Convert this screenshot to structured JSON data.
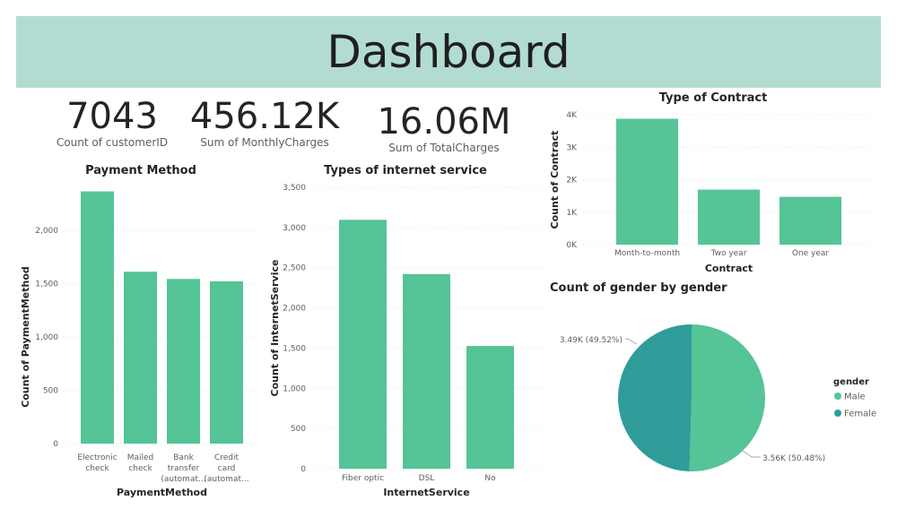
{
  "header": {
    "title": "Dashboard"
  },
  "kpis": [
    {
      "value": "7043",
      "label": "Count of customerID"
    },
    {
      "value": "456.12K",
      "label": "Sum of MonthlyCharges"
    },
    {
      "value": "16.06M",
      "label": "Sum of TotalCharges"
    }
  ],
  "colors": {
    "banner": "#b2dcd2",
    "bar": "#55c496",
    "male": "#55c496",
    "female": "#2f9c9a"
  },
  "chart_data": [
    {
      "type": "bar",
      "title": "Payment Method",
      "xlabel": "PaymentMethod",
      "ylabel": "Count of PaymentMethod",
      "categories": [
        [
          "Electronic",
          "check"
        ],
        [
          "Mailed",
          "check"
        ],
        [
          "Bank",
          "transfer",
          "(automat..."
        ],
        [
          "Credit",
          "card",
          "(automat..."
        ]
      ],
      "values": [
        2365,
        1612,
        1544,
        1522
      ],
      "yticks": [
        "0",
        "500",
        "1,000",
        "1,500",
        "2,000"
      ],
      "ylim": [
        0,
        2400
      ],
      "grid": true
    },
    {
      "type": "bar",
      "title": "Types of internet service",
      "xlabel": "InternetService",
      "ylabel": "Count of InternetService",
      "categories": [
        [
          "Fiber optic"
        ],
        [
          "DSL"
        ],
        [
          "No"
        ]
      ],
      "values": [
        3096,
        2421,
        1526
      ],
      "yticks": [
        "0",
        "500",
        "1,000",
        "1,500",
        "2,000",
        "2,500",
        "3,000",
        "3,500"
      ],
      "ylim": [
        0,
        3500
      ],
      "grid": true
    },
    {
      "type": "bar",
      "title": "Type of Contract",
      "xlabel": "Contract",
      "ylabel": "Count of Contract",
      "categories": [
        [
          "Month-to-month"
        ],
        [
          "Two year"
        ],
        [
          "One year"
        ]
      ],
      "values": [
        3875,
        1695,
        1473
      ],
      "yticks": [
        "0K",
        "1K",
        "2K",
        "3K",
        "4K"
      ],
      "ylim": [
        0,
        4000
      ],
      "grid": true
    },
    {
      "type": "pie",
      "title": "Count of gender by gender",
      "legend_title": "gender",
      "legend_position": "right",
      "labels": [
        "Male",
        "Female"
      ],
      "values": [
        3555,
        3488
      ],
      "data_labels": [
        "3.56K (50.48%)",
        "3.49K (49.52%)"
      ]
    }
  ]
}
